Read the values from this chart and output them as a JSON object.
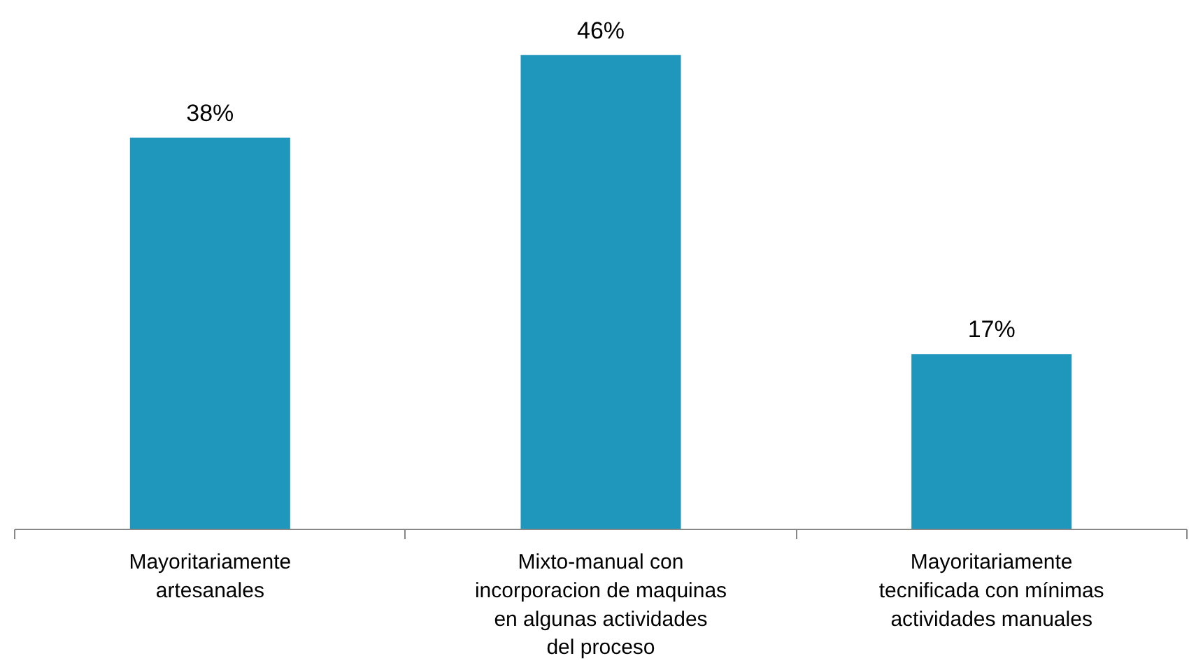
{
  "chart_data": {
    "type": "bar",
    "categories": [
      "Mayoritariamente artesanales",
      "Mixto-manual con incorporacion de maquinas en algunas actividades del proceso",
      "Mayoritariamente tecnificada con mínimas actividades manuales"
    ],
    "values": [
      38,
      46,
      17
    ],
    "value_labels": [
      "38%",
      "46%",
      "17%"
    ],
    "color": "#1f97bd",
    "grid": false
  }
}
